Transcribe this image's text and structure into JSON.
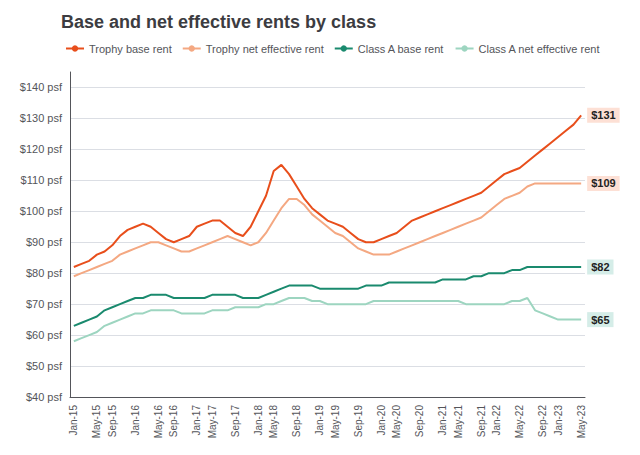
{
  "chart_data": {
    "type": "line",
    "title": "Base and net effective rents by class",
    "categories": [
      "Jan-15",
      null,
      null,
      "May-15",
      null,
      "Sep-15",
      null,
      null,
      "Jan-16",
      null,
      null,
      "May-16",
      null,
      "Sep-16",
      null,
      null,
      "Jan-17",
      null,
      "May-17",
      null,
      null,
      "Sep-17",
      null,
      null,
      "Jan-18",
      null,
      "May-18",
      null,
      null,
      "Sep-18",
      null,
      null,
      "Jan-19",
      null,
      "May-19",
      null,
      null,
      "Sep-19",
      null,
      null,
      "Jan-20",
      null,
      "May-20",
      null,
      null,
      "Sep-20",
      null,
      null,
      "Jan-21",
      null,
      "May-21",
      null,
      null,
      "Sep-21",
      null,
      "Jan-22",
      null,
      null,
      "May-22",
      null,
      null,
      "Sep-22",
      null,
      "Jan-23",
      null,
      null,
      "May-23"
    ],
    "series": [
      {
        "name": "Trophy base rent",
        "color": "#e84e1b",
        "annotation": {
          "text": "$131",
          "color": "#fde0d5"
        },
        "values": [
          82,
          83,
          84,
          86,
          87,
          89,
          92,
          94,
          95,
          96,
          95,
          93,
          91,
          90,
          91,
          92,
          95,
          96,
          97,
          97,
          95,
          93,
          92,
          95,
          100,
          105,
          113,
          115,
          112,
          108,
          104,
          101,
          99,
          97,
          96,
          95,
          93,
          91,
          90,
          90,
          91,
          92,
          93,
          95,
          97,
          98,
          99,
          100,
          101,
          102,
          103,
          104,
          105,
          106,
          108,
          110,
          112,
          113,
          114,
          116,
          118,
          120,
          122,
          124,
          126,
          128,
          131
        ]
      },
      {
        "name": "Trophy net effective rent",
        "color": "#f4a882",
        "annotation": {
          "text": "$109",
          "color": "#fde0d5"
        },
        "values": [
          79,
          80,
          81,
          82,
          83,
          84,
          86,
          87,
          88,
          89,
          90,
          90,
          89,
          88,
          87,
          87,
          88,
          89,
          90,
          91,
          92,
          91,
          90,
          89,
          90,
          93,
          97,
          101,
          104,
          104,
          102,
          99,
          97,
          95,
          93,
          92,
          90,
          88,
          87,
          86,
          86,
          86,
          87,
          88,
          89,
          90,
          91,
          92,
          93,
          94,
          95,
          96,
          97,
          98,
          100,
          102,
          104,
          105,
          106,
          108,
          109,
          109,
          109,
          109,
          109,
          109,
          109
        ]
      },
      {
        "name": "Class A base rent",
        "color": "#1a8a6e",
        "annotation": {
          "text": "$82",
          "color": "#d5ede8"
        },
        "values": [
          63,
          64,
          65,
          66,
          68,
          69,
          70,
          71,
          72,
          72,
          73,
          73,
          73,
          72,
          72,
          72,
          72,
          72,
          73,
          73,
          73,
          73,
          72,
          72,
          72,
          73,
          74,
          75,
          76,
          76,
          76,
          76,
          75,
          75,
          75,
          75,
          75,
          75,
          76,
          76,
          76,
          77,
          77,
          77,
          77,
          77,
          77,
          77,
          78,
          78,
          78,
          78,
          79,
          79,
          80,
          80,
          80,
          81,
          81,
          82,
          82,
          82,
          82,
          82,
          82,
          82,
          82
        ]
      },
      {
        "name": "Class A net effective rent",
        "color": "#9dd5c0",
        "annotation": {
          "text": "$65",
          "color": "#d5ede8"
        },
        "values": [
          58,
          59,
          60,
          61,
          63,
          64,
          65,
          66,
          67,
          67,
          68,
          68,
          68,
          68,
          67,
          67,
          67,
          67,
          68,
          68,
          68,
          69,
          69,
          69,
          69,
          70,
          70,
          71,
          72,
          72,
          72,
          71,
          71,
          70,
          70,
          70,
          70,
          70,
          70,
          71,
          71,
          71,
          71,
          71,
          71,
          71,
          71,
          71,
          71,
          71,
          71,
          70,
          70,
          70,
          70,
          70,
          70,
          71,
          71,
          72,
          68,
          67,
          66,
          65,
          65,
          65,
          65
        ]
      }
    ],
    "ylim": [
      40,
      145
    ],
    "yticks": [
      {
        "value": 40,
        "label": "$40 psf"
      },
      {
        "value": 50,
        "label": "$50 psf"
      },
      {
        "value": 60,
        "label": "$60 psf"
      },
      {
        "value": 70,
        "label": "$70 psf"
      },
      {
        "value": 80,
        "label": "$80 psf"
      },
      {
        "value": 90,
        "label": "$90 psf"
      },
      {
        "value": 100,
        "label": "$100 psf"
      },
      {
        "value": 110,
        "label": "$110 psf"
      },
      {
        "value": 120,
        "label": "$120 psf"
      },
      {
        "value": 130,
        "label": "$130 psf"
      },
      {
        "value": 140,
        "label": "$140 psf"
      }
    ],
    "grid": true,
    "legend": "upper left"
  }
}
